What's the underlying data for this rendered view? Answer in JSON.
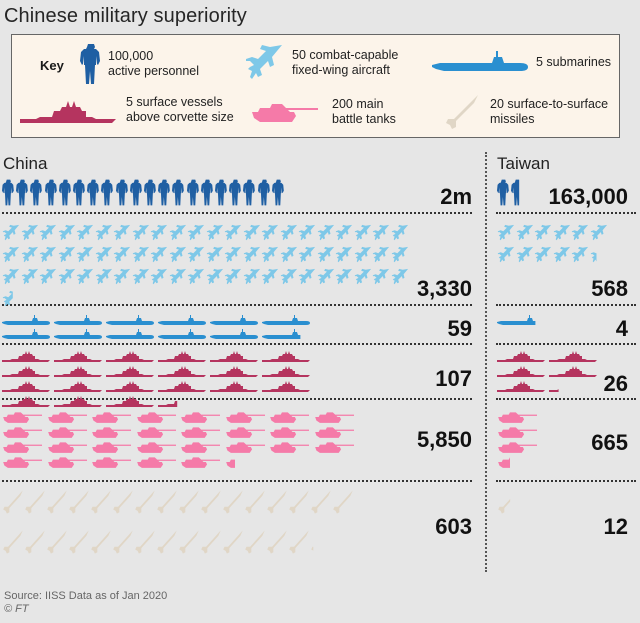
{
  "header": {
    "title": "Chinese military superiority"
  },
  "key": {
    "label": "Key",
    "items": [
      {
        "icon": "soldier-icon",
        "text": "100,000\nactive personnel",
        "unit": 100000
      },
      {
        "icon": "jet-icon",
        "text": "50 combat-capable\nfixed-wing aircraft",
        "unit": 50
      },
      {
        "icon": "submarine-icon",
        "text": "5 submarines",
        "unit": 5
      },
      {
        "icon": "warship-icon",
        "text": "5 surface vessels\nabove corvette size",
        "unit": 5
      },
      {
        "icon": "tank-icon",
        "text": "200 main\nbattle tanks",
        "unit": 200
      },
      {
        "icon": "missile-icon",
        "text": "20 surface-to-surface\nmissiles",
        "unit": 20
      }
    ]
  },
  "colors": {
    "personnel": "#1f5fa3",
    "aircraft": "#7ec8e8",
    "submarines": "#2a8fd0",
    "vessels": "#b5345f",
    "tanks": "#f57aa8",
    "missiles": "#e0d6c6",
    "background": "#e6e6e6",
    "key_bg": "#fcf4ea"
  },
  "chart_data": {
    "type": "pictogram",
    "title": "Chinese military superiority",
    "columns": [
      "China",
      "Taiwan"
    ],
    "categories": [
      "Active personnel",
      "Combat-capable fixed-wing aircraft",
      "Submarines",
      "Surface vessels above corvette size",
      "Main battle tanks",
      "Surface-to-surface missiles"
    ],
    "series": [
      {
        "name": "China",
        "labels": [
          "2m",
          "3,330",
          "59",
          "107",
          "5,850",
          "603"
        ],
        "values": [
          2000000,
          3330,
          59,
          107,
          5850,
          603
        ]
      },
      {
        "name": "Taiwan",
        "labels": [
          "163,000",
          "568",
          "4",
          "26",
          "665",
          "12"
        ],
        "values": [
          163000,
          568,
          4,
          26,
          665,
          12
        ]
      }
    ],
    "units_per_icon": [
      100000,
      50,
      5,
      5,
      200,
      20
    ]
  },
  "footer": {
    "source": "Source: IISS   Data as of Jan 2020",
    "copyright": "© FT"
  }
}
